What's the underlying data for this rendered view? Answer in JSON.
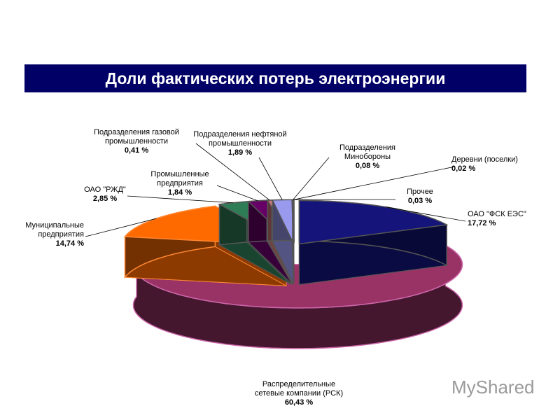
{
  "chart_data": {
    "type": "pie3d",
    "title": "Доли фактических потерь электроэнергии",
    "categories": [
      "ОАО \"ФСК ЕЭС\"",
      "Распределительные\nсетевые компании (РСК)",
      "Муниципальные\nпредприятия",
      "ОАО \"РЖД\"",
      "Промышленные\nпредприятия",
      "Подразделения газовой\nпромышленности",
      "Подразделения нефтяной\nпромышленности",
      "Подразделения\nМинобороны",
      "Деревни (поселки)",
      "Прочее"
    ],
    "values": [
      17.72,
      60.43,
      14.74,
      2.85,
      1.84,
      0.41,
      1.89,
      0.08,
      0.02,
      0.03
    ],
    "value_labels": [
      "17,72 %",
      "60,43 %",
      "14,74 %",
      "2,85 %",
      "1,84 %",
      "0,41 %",
      "1,89 %",
      "0,08 %",
      "0,02 %",
      "0,03 %"
    ],
    "colors": [
      "#14147a",
      "#993366",
      "#ff6a00",
      "#2e7d57",
      "#660066",
      "#cc7a7a",
      "#9999ee",
      "#cc3333",
      "#ffffff",
      "#ee2222"
    ]
  },
  "watermark": "MyShared"
}
